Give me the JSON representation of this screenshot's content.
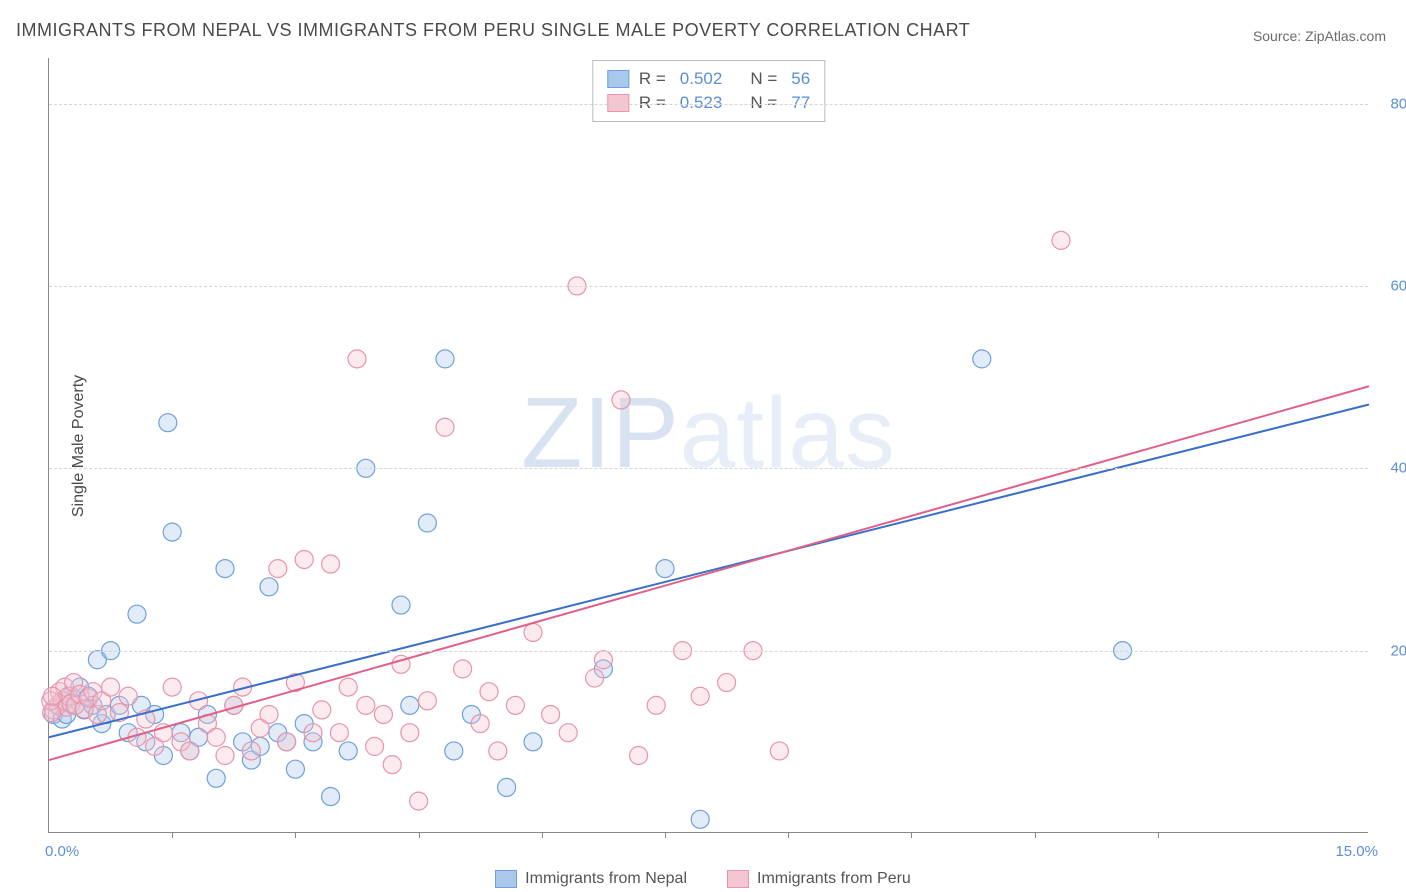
{
  "title": "IMMIGRANTS FROM NEPAL VS IMMIGRANTS FROM PERU SINGLE MALE POVERTY CORRELATION CHART",
  "source": "Source: ZipAtlas.com",
  "ylabel": "Single Male Poverty",
  "watermark": "ZIPatlas",
  "chart": {
    "type": "scatter",
    "xlim": [
      0,
      15
    ],
    "ylim": [
      0,
      85
    ],
    "x_axis_labels": {
      "left": "0.0%",
      "right": "15.0%"
    },
    "y_ticks": [
      20,
      40,
      60,
      80
    ],
    "y_tick_labels": [
      "20.0%",
      "40.0%",
      "60.0%",
      "80.0%"
    ],
    "x_minor_ticks": [
      1.4,
      2.8,
      4.2,
      5.6,
      7.0,
      8.4,
      9.8,
      11.2,
      12.6
    ],
    "grid_color": "#d5d5d5",
    "axis_color": "#888888",
    "background_color": "#ffffff",
    "tick_label_color": "#5b8fd6",
    "marker_radius": 9,
    "marker_fill_opacity": 0.35,
    "marker_stroke_width": 1.2,
    "line_width": 2
  },
  "series": [
    {
      "name": "Immigrants from Nepal",
      "color_fill": "#a9c8ec",
      "color_stroke": "#6fa0db",
      "line_color": "#3a6fc9",
      "R": "0.502",
      "N": "56",
      "trend": {
        "x1": 0,
        "y1": 10.5,
        "x2": 15,
        "y2": 47
      },
      "points": [
        [
          0.05,
          13
        ],
        [
          0.1,
          14
        ],
        [
          0.15,
          12.5
        ],
        [
          0.18,
          14.5
        ],
        [
          0.2,
          13
        ],
        [
          0.25,
          15
        ],
        [
          0.3,
          14
        ],
        [
          0.35,
          16
        ],
        [
          0.4,
          13.5
        ],
        [
          0.45,
          15
        ],
        [
          0.5,
          14
        ],
        [
          0.55,
          19
        ],
        [
          0.6,
          12
        ],
        [
          0.65,
          13
        ],
        [
          0.7,
          20
        ],
        [
          0.8,
          14
        ],
        [
          0.9,
          11
        ],
        [
          1.0,
          24
        ],
        [
          1.05,
          14
        ],
        [
          1.1,
          10
        ],
        [
          1.2,
          13
        ],
        [
          1.3,
          8.5
        ],
        [
          1.35,
          45
        ],
        [
          1.4,
          33
        ],
        [
          1.5,
          11
        ],
        [
          1.6,
          9
        ],
        [
          1.7,
          10.5
        ],
        [
          1.8,
          13
        ],
        [
          1.9,
          6
        ],
        [
          2.0,
          29
        ],
        [
          2.1,
          14
        ],
        [
          2.2,
          10
        ],
        [
          2.3,
          8
        ],
        [
          2.4,
          9.5
        ],
        [
          2.5,
          27
        ],
        [
          2.6,
          11
        ],
        [
          2.7,
          10
        ],
        [
          2.8,
          7
        ],
        [
          2.9,
          12
        ],
        [
          3.0,
          10
        ],
        [
          3.2,
          4
        ],
        [
          3.4,
          9
        ],
        [
          3.6,
          40
        ],
        [
          4.0,
          25
        ],
        [
          4.1,
          14
        ],
        [
          4.3,
          34
        ],
        [
          4.5,
          52
        ],
        [
          4.6,
          9
        ],
        [
          4.8,
          13
        ],
        [
          5.2,
          5
        ],
        [
          5.5,
          10
        ],
        [
          6.3,
          18
        ],
        [
          7.0,
          29
        ],
        [
          7.4,
          1.5
        ],
        [
          10.6,
          52
        ],
        [
          12.2,
          20
        ]
      ]
    },
    {
      "name": "Immigrants from Peru",
      "color_fill": "#f4c6d2",
      "color_stroke": "#e794ac",
      "line_color": "#e06088",
      "R": "0.523",
      "N": "77",
      "trend": {
        "x1": 0,
        "y1": 8,
        "x2": 15,
        "y2": 49
      },
      "points": [
        [
          0.05,
          13.5
        ],
        [
          0.1,
          14
        ],
        [
          0.12,
          15.5
        ],
        [
          0.15,
          14.5
        ],
        [
          0.18,
          16
        ],
        [
          0.2,
          13.8
        ],
        [
          0.22,
          15
        ],
        [
          0.25,
          14.2
        ],
        [
          0.28,
          16.5
        ],
        [
          0.3,
          14
        ],
        [
          0.35,
          15.2
        ],
        [
          0.4,
          13.6
        ],
        [
          0.45,
          14.8
        ],
        [
          0.5,
          15.5
        ],
        [
          0.55,
          13
        ],
        [
          0.6,
          14.5
        ],
        [
          0.7,
          16
        ],
        [
          0.8,
          13.2
        ],
        [
          0.9,
          15
        ],
        [
          1.0,
          10.5
        ],
        [
          1.1,
          12.5
        ],
        [
          1.2,
          9.5
        ],
        [
          1.3,
          11
        ],
        [
          1.4,
          16
        ],
        [
          1.5,
          10
        ],
        [
          1.6,
          9
        ],
        [
          1.7,
          14.5
        ],
        [
          1.8,
          12
        ],
        [
          1.9,
          10.5
        ],
        [
          2.0,
          8.5
        ],
        [
          2.1,
          14
        ],
        [
          2.2,
          16
        ],
        [
          2.3,
          9
        ],
        [
          2.4,
          11.5
        ],
        [
          2.5,
          13
        ],
        [
          2.6,
          29
        ],
        [
          2.7,
          10
        ],
        [
          2.8,
          16.5
        ],
        [
          2.9,
          30
        ],
        [
          3.0,
          11
        ],
        [
          3.1,
          13.5
        ],
        [
          3.2,
          29.5
        ],
        [
          3.3,
          11
        ],
        [
          3.4,
          16
        ],
        [
          3.5,
          52
        ],
        [
          3.6,
          14
        ],
        [
          3.7,
          9.5
        ],
        [
          3.8,
          13
        ],
        [
          3.9,
          7.5
        ],
        [
          4.0,
          18.5
        ],
        [
          4.1,
          11
        ],
        [
          4.2,
          3.5
        ],
        [
          4.3,
          14.5
        ],
        [
          4.5,
          44.5
        ],
        [
          4.7,
          18
        ],
        [
          4.9,
          12
        ],
        [
          5.0,
          15.5
        ],
        [
          5.1,
          9
        ],
        [
          5.3,
          14
        ],
        [
          5.5,
          22
        ],
        [
          5.7,
          13
        ],
        [
          5.9,
          11
        ],
        [
          6.0,
          60
        ],
        [
          6.2,
          17
        ],
        [
          6.3,
          19
        ],
        [
          6.5,
          47.5
        ],
        [
          6.7,
          8.5
        ],
        [
          6.9,
          14
        ],
        [
          7.2,
          20
        ],
        [
          7.4,
          15
        ],
        [
          7.7,
          16.5
        ],
        [
          8.0,
          20
        ],
        [
          8.3,
          9
        ],
        [
          11.5,
          65
        ],
        [
          0.02,
          14.5
        ],
        [
          0.03,
          13.2
        ],
        [
          0.04,
          15
        ]
      ]
    }
  ],
  "legend": {
    "stats_label_R": "R =",
    "stats_label_N": "N ="
  }
}
